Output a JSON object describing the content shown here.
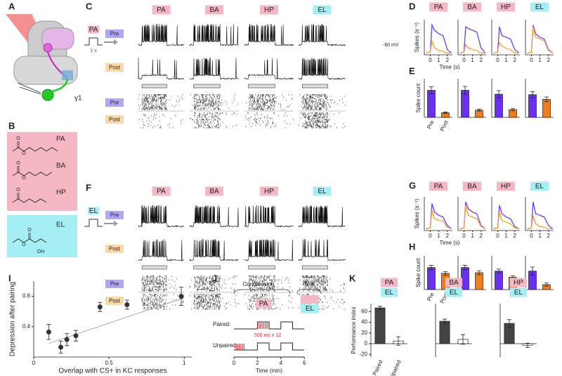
{
  "panel_labels": [
    "A",
    "B",
    "C",
    "D",
    "E",
    "F",
    "G",
    "H",
    "I",
    "J",
    "K"
  ],
  "odor_colors": {
    "PA": "#f6b7c4",
    "BA": "#f6b7c4",
    "HP": "#f6b7c4",
    "EL": "#a4eef4"
  },
  "panels": {
    "A": {
      "gamma": "γ1"
    },
    "B": {
      "odors": [
        "PA",
        "BA",
        "HP",
        "EL"
      ],
      "oxygen": "O",
      "hydroxyl": "OH"
    },
    "C": {
      "stimulus": "PA",
      "duration": "1 s",
      "odors": [
        "PA",
        "BA",
        "HP",
        "EL"
      ],
      "pre": "Pre",
      "post": "Post",
      "voltage": "-60 mV"
    },
    "F": {
      "stimulus": "EL",
      "odors": [
        "PA",
        "BA",
        "HP",
        "EL"
      ],
      "pre": "Pre",
      "post": "Post"
    },
    "J": {
      "conditioning": "Conditioning",
      "test": "Test",
      "cs_plus": "PA",
      "cs_minus": "EL",
      "paired": "Paired:",
      "unpaired": "Unpaired:",
      "train": "500 ms x 12",
      "xlabel": "Time (min)",
      "time_ticks": [
        0,
        2,
        4,
        6
      ]
    }
  },
  "chart_data": [
    {
      "type": "line",
      "title": "PA",
      "ylabel": "Spikes (s⁻¹)",
      "xlabel": "Time (s)",
      "x": [
        -0.5,
        0,
        0.2,
        0.5,
        1,
        1.5,
        2,
        2.5
      ],
      "xlim": [
        -0.7,
        2.6
      ],
      "xticks": [
        0,
        1,
        2
      ],
      "ylim": [
        0,
        100
      ],
      "series": [
        {
          "color": "#6b4cf5",
          "values": [
            5,
            8,
            85,
            70,
            60,
            55,
            15,
            5
          ]
        },
        {
          "color": "#f7a440",
          "values": [
            5,
            8,
            40,
            20,
            12,
            10,
            5,
            5
          ]
        }
      ]
    },
    {
      "type": "line",
      "title": "BA",
      "x": [
        -0.5,
        0,
        0.2,
        0.5,
        1,
        1.5,
        2,
        2.5
      ],
      "xlim": [
        -0.7,
        2.6
      ],
      "xticks": [
        0,
        1,
        2
      ],
      "ylim": [
        0,
        100
      ],
      "series": [
        {
          "color": "#6b4cf5",
          "values": [
            5,
            8,
            80,
            75,
            70,
            65,
            20,
            5
          ]
        },
        {
          "color": "#f7a440",
          "values": [
            5,
            8,
            30,
            20,
            15,
            12,
            5,
            5
          ]
        }
      ]
    },
    {
      "type": "line",
      "title": "HP",
      "x": [
        -0.5,
        0,
        0.2,
        0.5,
        1,
        1.5,
        2,
        2.5
      ],
      "xlim": [
        -0.7,
        2.6
      ],
      "xticks": [
        0,
        1,
        2
      ],
      "ylim": [
        0,
        100
      ],
      "series": [
        {
          "color": "#6b4cf5",
          "values": [
            5,
            8,
            80,
            55,
            50,
            45,
            15,
            5
          ]
        },
        {
          "color": "#f7a440",
          "values": [
            5,
            8,
            35,
            25,
            18,
            15,
            5,
            5
          ]
        }
      ]
    },
    {
      "type": "line",
      "title": "EL",
      "x": [
        -0.5,
        0,
        0.2,
        0.5,
        1,
        1.5,
        2,
        2.5
      ],
      "xlim": [
        -0.7,
        2.6
      ],
      "xticks": [
        0,
        1,
        2
      ],
      "ylim": [
        0,
        100
      ],
      "series": [
        {
          "color": "#6b4cf5",
          "values": [
            5,
            8,
            85,
            60,
            50,
            45,
            15,
            5
          ]
        },
        {
          "color": "#f7a440",
          "values": [
            5,
            8,
            80,
            50,
            45,
            40,
            12,
            5
          ]
        }
      ]
    },
    {
      "type": "bar",
      "ylabel": "Spike count",
      "categories": [
        "Pre",
        "Post"
      ],
      "values": [
        105,
        18
      ],
      "errors": [
        14,
        3
      ],
      "colors": [
        "#6b2ff0",
        "#f07d1a"
      ],
      "ylim": [
        0,
        150
      ]
    },
    {
      "type": "bar",
      "categories": [
        null,
        null
      ],
      "values": [
        105,
        28
      ],
      "errors": [
        15,
        4
      ],
      "colors": [
        "#6b2ff0",
        "#f07d1a"
      ],
      "ylim": [
        0,
        150
      ]
    },
    {
      "type": "bar",
      "categories": [
        null,
        null
      ],
      "values": [
        90,
        30
      ],
      "errors": [
        14,
        4
      ],
      "colors": [
        "#6b2ff0",
        "#f07d1a"
      ],
      "ylim": [
        0,
        150
      ]
    },
    {
      "type": "bar",
      "categories": [
        null,
        null
      ],
      "values": [
        88,
        70
      ],
      "errors": [
        12,
        9
      ],
      "colors": [
        "#6b2ff0",
        "#f07d1a"
      ],
      "ylim": [
        0,
        150
      ]
    },
    {
      "type": "line",
      "title": "PA",
      "ylabel": "Spikes (s⁻¹)",
      "xlabel": "Time (s)",
      "x": [
        -0.5,
        0,
        0.2,
        0.5,
        1,
        1.5,
        2,
        2.5
      ],
      "xlim": [
        -0.7,
        2.6
      ],
      "xticks": [
        0,
        1,
        2
      ],
      "ylim": [
        0,
        100
      ],
      "series": [
        {
          "color": "#6b4cf5",
          "values": [
            5,
            8,
            80,
            55,
            45,
            40,
            15,
            5
          ]
        },
        {
          "color": "#f7a440",
          "values": [
            5,
            8,
            60,
            35,
            30,
            28,
            10,
            5
          ]
        }
      ]
    },
    {
      "type": "line",
      "title": "BA",
      "x": [
        -0.5,
        0,
        0.2,
        0.5,
        1,
        1.5,
        2,
        2.5
      ],
      "xlim": [
        -0.7,
        2.6
      ],
      "xticks": [
        0,
        1,
        2
      ],
      "ylim": [
        0,
        100
      ],
      "series": [
        {
          "color": "#6b4cf5",
          "values": [
            5,
            8,
            85,
            65,
            55,
            50,
            15,
            5
          ]
        },
        {
          "color": "#f7a440",
          "values": [
            5,
            8,
            75,
            45,
            40,
            35,
            12,
            5
          ]
        }
      ]
    },
    {
      "type": "line",
      "title": "HP",
      "x": [
        -0.5,
        0,
        0.2,
        0.5,
        1,
        1.5,
        2,
        2.5
      ],
      "xlim": [
        -0.7,
        2.6
      ],
      "xticks": [
        0,
        1,
        2
      ],
      "ylim": [
        0,
        100
      ],
      "series": [
        {
          "color": "#6b4cf5",
          "values": [
            5,
            8,
            75,
            50,
            40,
            35,
            12,
            5
          ]
        },
        {
          "color": "#f7a440",
          "values": [
            5,
            8,
            55,
            30,
            25,
            20,
            8,
            5
          ]
        }
      ]
    },
    {
      "type": "line",
      "title": "EL",
      "x": [
        -0.5,
        0,
        0.2,
        0.5,
        1,
        1.5,
        2,
        2.5
      ],
      "xlim": [
        -0.7,
        2.6
      ],
      "xticks": [
        0,
        1,
        2
      ],
      "ylim": [
        0,
        100
      ],
      "series": [
        {
          "color": "#6b4cf5",
          "values": [
            5,
            8,
            85,
            50,
            45,
            40,
            15,
            5
          ]
        },
        {
          "color": "#f7a440",
          "values": [
            5,
            8,
            45,
            20,
            12,
            10,
            5,
            5
          ]
        }
      ]
    },
    {
      "type": "bar",
      "ylabel": "Spike count",
      "categories": [
        "Pre",
        "Post"
      ],
      "values": [
        98,
        72
      ],
      "errors": [
        10,
        8
      ],
      "colors": [
        "#6b2ff0",
        "#f07d1a"
      ],
      "ylim": [
        0,
        150
      ]
    },
    {
      "type": "bar",
      "categories": [
        null,
        null
      ],
      "values": [
        98,
        75
      ],
      "errors": [
        10,
        9
      ],
      "colors": [
        "#6b2ff0",
        "#f07d1a"
      ],
      "ylim": [
        0,
        150
      ]
    },
    {
      "type": "bar",
      "categories": [
        null,
        null
      ],
      "values": [
        82,
        55
      ],
      "errors": [
        9,
        6
      ],
      "colors": [
        "#6b2ff0",
        "#f07d1a"
      ],
      "ylim": [
        0,
        150
      ]
    },
    {
      "type": "bar",
      "categories": [
        null,
        null
      ],
      "values": [
        82,
        22
      ],
      "errors": [
        18,
        7
      ],
      "colors": [
        "#6b2ff0",
        "#f07d1a"
      ],
      "ylim": [
        0,
        150
      ]
    },
    {
      "type": "scatter",
      "xlabel": "Overlap with CS+ in KC responses",
      "ylabel": "Depression after pairing",
      "x": [
        0.1,
        0.18,
        0.22,
        0.28,
        0.44,
        0.62,
        0.98
      ],
      "values": [
        0.33,
        0.13,
        0.23,
        0.28,
        0.66,
        0.69,
        0.8
      ],
      "errors": [
        0.1,
        0.08,
        0.08,
        0.07,
        0.06,
        0.06,
        0.12
      ],
      "fit": {
        "x": [
          0.1,
          1
        ],
        "y": [
          0.18,
          0.78
        ]
      },
      "xlim": [
        0,
        1.05
      ],
      "ylim": [
        0,
        1
      ],
      "xticks": [
        0,
        0.5,
        1
      ],
      "yticks": [
        0.4,
        0.8
      ],
      "color": "#333333"
    },
    {
      "type": "bar",
      "title": "PA",
      "subtitle": "EL",
      "ylabel": "Performance index",
      "categories": [
        "Paired",
        "Unpaired"
      ],
      "values": [
        67,
        5
      ],
      "errors": [
        3,
        8
      ],
      "colors": [
        "#444444",
        "#ffffff"
      ],
      "ylim": [
        -25,
        75
      ],
      "yticks": [
        60,
        40,
        20,
        0,
        -20
      ]
    },
    {
      "type": "bar",
      "title": "BA",
      "subtitle": "EL",
      "categories": [
        null,
        null
      ],
      "values": [
        42,
        8
      ],
      "errors": [
        4,
        9
      ],
      "colors": [
        "#444444",
        "#ffffff"
      ],
      "ylim": [
        -25,
        75
      ]
    },
    {
      "type": "bar",
      "title": "HP",
      "subtitle": "EL",
      "categories": [
        null,
        null
      ],
      "values": [
        38,
        -3
      ],
      "errors": [
        7,
        4
      ],
      "colors": [
        "#444444",
        "#ffffff"
      ],
      "ylim": [
        -25,
        75
      ]
    }
  ]
}
